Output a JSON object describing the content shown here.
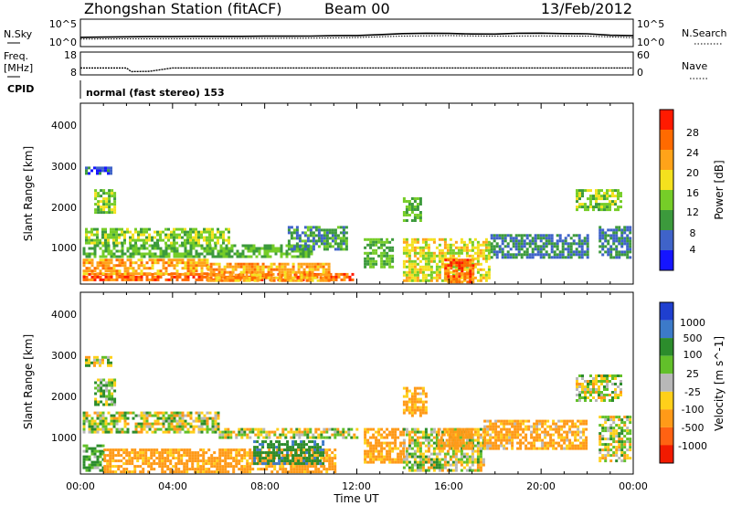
{
  "header": {
    "station": "Zhongshan Station (fitACF)",
    "beam": "Beam 00",
    "date": "13/Feb/2012"
  },
  "noise_panel": {
    "left_label": "N.Sky",
    "right_label": "N.Search",
    "left_ticks": [
      "10^5",
      "10^0"
    ],
    "right_ticks": [
      "10^5",
      "10^0"
    ]
  },
  "freq_panel": {
    "left_label_1": "Freq.",
    "left_label_2": "[MHz]",
    "right_label": "Nave",
    "left_ticks": [
      "18",
      "8"
    ],
    "right_ticks": [
      "60",
      "0"
    ]
  },
  "cpid_panel": {
    "label": "CPID",
    "mode_text": "normal (fast stereo) 153"
  },
  "time_axis": {
    "title": "Time UT",
    "ticks": [
      "00:00",
      "04:00",
      "08:00",
      "12:00",
      "16:00",
      "20:00",
      "00:00"
    ]
  },
  "range_axis": {
    "title": "Slant Range [km]",
    "ticks": [
      "1000",
      "2000",
      "3000",
      "4000"
    ]
  },
  "power_colorbar": {
    "title": "Power [dB]",
    "ticks": [
      "4",
      "8",
      "12",
      "16",
      "20",
      "24",
      "28"
    ],
    "colors": [
      "#1515ff",
      "#3f63c9",
      "#3c9a3c",
      "#76cd28",
      "#f4e11e",
      "#ffa319",
      "#ff6a00",
      "#ff1a00"
    ]
  },
  "velocity_colorbar": {
    "title": "Velocity [m s^-1]",
    "ticks": [
      "1000",
      "500",
      "100",
      "25",
      "-25",
      "-100",
      "-500",
      "-1000"
    ],
    "colors": [
      "#1f3fcf",
      "#3c7ac9",
      "#2c8c2c",
      "#62c02a",
      "#b8b8b8",
      "#ffd01a",
      "#ff9a18",
      "#ff6212",
      "#f21a00"
    ]
  },
  "chart_data": [
    {
      "type": "line",
      "panel": "noise",
      "ylabel": "N.Sky",
      "x_unit": "hours UT",
      "y_scale": "log",
      "ylim": [
        1,
        100000
      ],
      "series": [
        {
          "x": [
            0,
            1,
            2,
            3,
            4,
            5,
            6,
            7,
            8,
            9,
            10,
            11,
            12,
            13,
            14,
            15,
            16,
            17,
            18,
            19,
            20,
            21,
            22,
            23,
            24
          ],
          "values": [
            30,
            35,
            40,
            45,
            45,
            50,
            50,
            50,
            55,
            55,
            60,
            70,
            80,
            130,
            220,
            260,
            240,
            180,
            170,
            260,
            280,
            220,
            200,
            90,
            70
          ]
        },
        {
          "x": [
            0,
            2,
            4,
            6,
            8,
            10,
            12,
            14,
            16,
            18,
            20,
            22,
            24
          ],
          "values": [
            12,
            14,
            15,
            16,
            18,
            20,
            28,
            60,
            75,
            55,
            65,
            60,
            25
          ]
        }
      ]
    },
    {
      "type": "line",
      "panel": "frequency",
      "ylabel": "Freq. [MHz]",
      "x_unit": "hours UT",
      "ylim": [
        8,
        18
      ],
      "series": [
        {
          "x": [
            0,
            2,
            2.2,
            3,
            4,
            6,
            8,
            10,
            12,
            14,
            16,
            18,
            20,
            22,
            24
          ],
          "values": [
            11,
            11,
            9.2,
            9.3,
            11,
            11,
            11,
            11,
            11,
            11,
            11,
            11,
            11,
            11,
            11
          ]
        }
      ]
    },
    {
      "type": "heatmap",
      "panel": "power",
      "xlabel": "Time UT",
      "ylabel": "Slant Range [km]",
      "x_unit": "hours UT",
      "xlim": [
        0,
        24
      ],
      "ylim": [
        180,
        4600
      ],
      "colorbar": {
        "label": "Power [dB]",
        "range": [
          0,
          30
        ]
      },
      "regions": [
        {
          "t": [
            0.1,
            11.8
          ],
          "r": [
            250,
            450
          ],
          "db": 26
        },
        {
          "t": [
            0.1,
            5.5
          ],
          "r": [
            450,
            800
          ],
          "db": 22
        },
        {
          "t": [
            0.2,
            6.5
          ],
          "r": [
            1150,
            1550
          ],
          "db": 14
        },
        {
          "t": [
            0.1,
            10.0
          ],
          "r": [
            850,
            1150
          ],
          "db": 12
        },
        {
          "t": [
            0.2,
            1.3
          ],
          "r": [
            2900,
            3050
          ],
          "db": 6
        },
        {
          "t": [
            0.6,
            1.5
          ],
          "r": [
            1900,
            2500
          ],
          "db": 14
        },
        {
          "t": [
            5.5,
            10.8
          ],
          "r": [
            250,
            700
          ],
          "db": 22
        },
        {
          "t": [
            9.0,
            11.5
          ],
          "r": [
            1000,
            1600
          ],
          "db": 10
        },
        {
          "t": [
            12.3,
            13.5
          ],
          "r": [
            600,
            1300
          ],
          "db": 12
        },
        {
          "t": [
            14.0,
            17.8
          ],
          "r": [
            250,
            1300
          ],
          "db": 18
        },
        {
          "t": [
            15.8,
            17.0
          ],
          "r": [
            250,
            800
          ],
          "db": 26
        },
        {
          "t": [
            14.0,
            14.8
          ],
          "r": [
            1700,
            2300
          ],
          "db": 12
        },
        {
          "t": [
            17.8,
            22.0
          ],
          "r": [
            800,
            1400
          ],
          "db": 8
        },
        {
          "t": [
            21.5,
            23.5
          ],
          "r": [
            2000,
            2500
          ],
          "db": 14
        },
        {
          "t": [
            22.5,
            23.9
          ],
          "r": [
            800,
            1600
          ],
          "db": 8
        }
      ]
    },
    {
      "type": "heatmap",
      "panel": "velocity",
      "xlabel": "Time UT",
      "ylabel": "Slant Range [km]",
      "x_unit": "hours UT",
      "xlim": [
        0,
        24
      ],
      "ylim": [
        180,
        4600
      ],
      "colorbar": {
        "label": "Velocity [m s^-1]",
        "range": [
          -1000,
          1000
        ]
      },
      "regions": [
        {
          "t": [
            0.1,
            6.0
          ],
          "r": [
            1200,
            1700
          ],
          "v": 0
        },
        {
          "t": [
            6.0,
            12.0
          ],
          "r": [
            1100,
            1300
          ],
          "v": 0
        },
        {
          "t": [
            0.1,
            1.0
          ],
          "r": [
            250,
            900
          ],
          "v": 150
        },
        {
          "t": [
            1.0,
            11.0
          ],
          "r": [
            250,
            800
          ],
          "v": -200
        },
        {
          "t": [
            7.5,
            10.5
          ],
          "r": [
            450,
            1000
          ],
          "v": 400
        },
        {
          "t": [
            0.6,
            1.5
          ],
          "r": [
            1900,
            2500
          ],
          "v": 60
        },
        {
          "t": [
            0.2,
            1.3
          ],
          "r": [
            2850,
            3050
          ],
          "v": 0
        },
        {
          "t": [
            12.3,
            14.0
          ],
          "r": [
            500,
            1300
          ],
          "v": -200
        },
        {
          "t": [
            14.0,
            17.5
          ],
          "r": [
            250,
            1300
          ],
          "v": 0
        },
        {
          "t": [
            14.0,
            15.0
          ],
          "r": [
            1600,
            2300
          ],
          "v": -150
        },
        {
          "t": [
            15.5,
            17.0
          ],
          "r": [
            800,
            1300
          ],
          "v": -250
        },
        {
          "t": [
            17.5,
            22.0
          ],
          "r": [
            800,
            1500
          ],
          "v": -150
        },
        {
          "t": [
            21.5,
            23.5
          ],
          "r": [
            1950,
            2600
          ],
          "v": 0
        },
        {
          "t": [
            22.5,
            23.9
          ],
          "r": [
            500,
            1600
          ],
          "v": 0
        }
      ]
    }
  ]
}
